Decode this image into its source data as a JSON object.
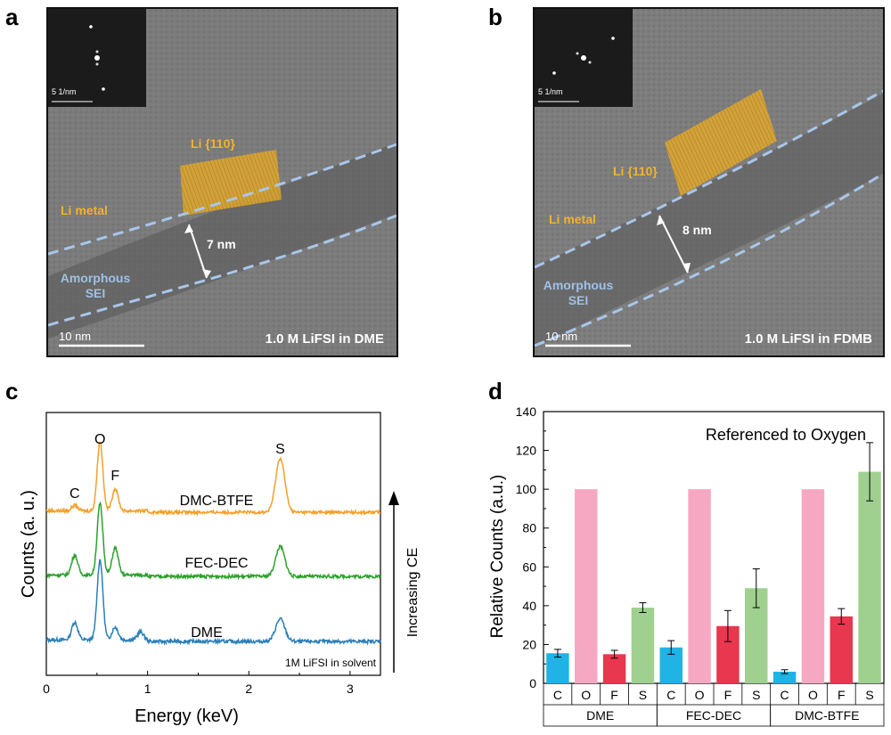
{
  "panels": {
    "a": {
      "label": "a",
      "inset_scale": "5 1/nm",
      "scale_bar": "10 nm",
      "caption": "1.0 M LiFSI in DME",
      "lattice_label": "Li {110}",
      "metal_label": "Li metal",
      "sei_label_line1": "Amorphous",
      "sei_label_line2": "SEI",
      "thickness": "7 nm"
    },
    "b": {
      "label": "b",
      "inset_scale": "5 1/nm",
      "scale_bar": "10 nm",
      "caption": "1.0 M LiFSI in FDMB",
      "lattice_label": "Li {110}",
      "metal_label": "Li metal",
      "sei_label_line1": "Amorphous",
      "sei_label_line2": "SEI",
      "thickness": "8 nm"
    },
    "c": {
      "label": "c"
    },
    "d": {
      "label": "d"
    }
  },
  "colors": {
    "orange": "#f3a02a",
    "green": "#2ca02c",
    "blue": "#2b7fb8",
    "dashed_sei": "#a8c6ea",
    "bar_C": "#1fb3e6",
    "bar_O": "#f6a8c3",
    "bar_F": "#e8374f",
    "bar_S": "#9fd08f"
  },
  "chart_data": [
    {
      "type": "line",
      "title": "",
      "xlabel": "Energy (keV)",
      "ylabel": "Counts (a. u.)",
      "xlim": [
        0,
        3.3
      ],
      "xticks": [
        "0",
        "1",
        "2",
        "3"
      ],
      "series": [
        {
          "name": "DME",
          "color": "#2b7fb8",
          "peaks": [
            [
              0.28,
              0.22
            ],
            [
              0.53,
              1.0
            ],
            [
              0.68,
              0.16
            ],
            [
              0.93,
              0.1
            ],
            [
              2.31,
              0.28
            ]
          ]
        },
        {
          "name": "FEC-DEC",
          "color": "#2ca02c",
          "peaks": [
            [
              0.28,
              0.28
            ],
            [
              0.53,
              1.0
            ],
            [
              0.68,
              0.38
            ],
            [
              2.31,
              0.42
            ]
          ]
        },
        {
          "name": "DMC-BTFE",
          "color": "#f3a02a",
          "peaks": [
            [
              0.28,
              0.08
            ],
            [
              0.53,
              1.0
            ],
            [
              0.68,
              0.32
            ],
            [
              2.31,
              0.78
            ]
          ]
        }
      ],
      "peak_labels": [
        "C",
        "O",
        "F",
        "S"
      ],
      "arrow_label": "Increasing CE",
      "footnote": "1M LiFSI in solvent"
    },
    {
      "type": "bar",
      "title": "Referenced to Oxygen",
      "ylabel": "Relative Counts (a.u.)",
      "ylim": [
        0,
        140
      ],
      "yticks": [
        "0",
        "20",
        "40",
        "60",
        "80",
        "100",
        "120",
        "140"
      ],
      "element_labels": [
        "C",
        "O",
        "F",
        "S"
      ],
      "groups": [
        {
          "name": "DME",
          "values": [
            15.5,
            100,
            15,
            39
          ],
          "errors": [
            2,
            0,
            2,
            2.5
          ]
        },
        {
          "name": "FEC-DEC",
          "values": [
            18.5,
            100,
            29.5,
            49
          ],
          "errors": [
            3.5,
            0,
            8,
            10
          ]
        },
        {
          "name": "DMC-BTFE",
          "values": [
            6,
            100,
            34.5,
            109
          ],
          "errors": [
            1,
            0,
            4,
            15
          ]
        }
      ]
    }
  ]
}
